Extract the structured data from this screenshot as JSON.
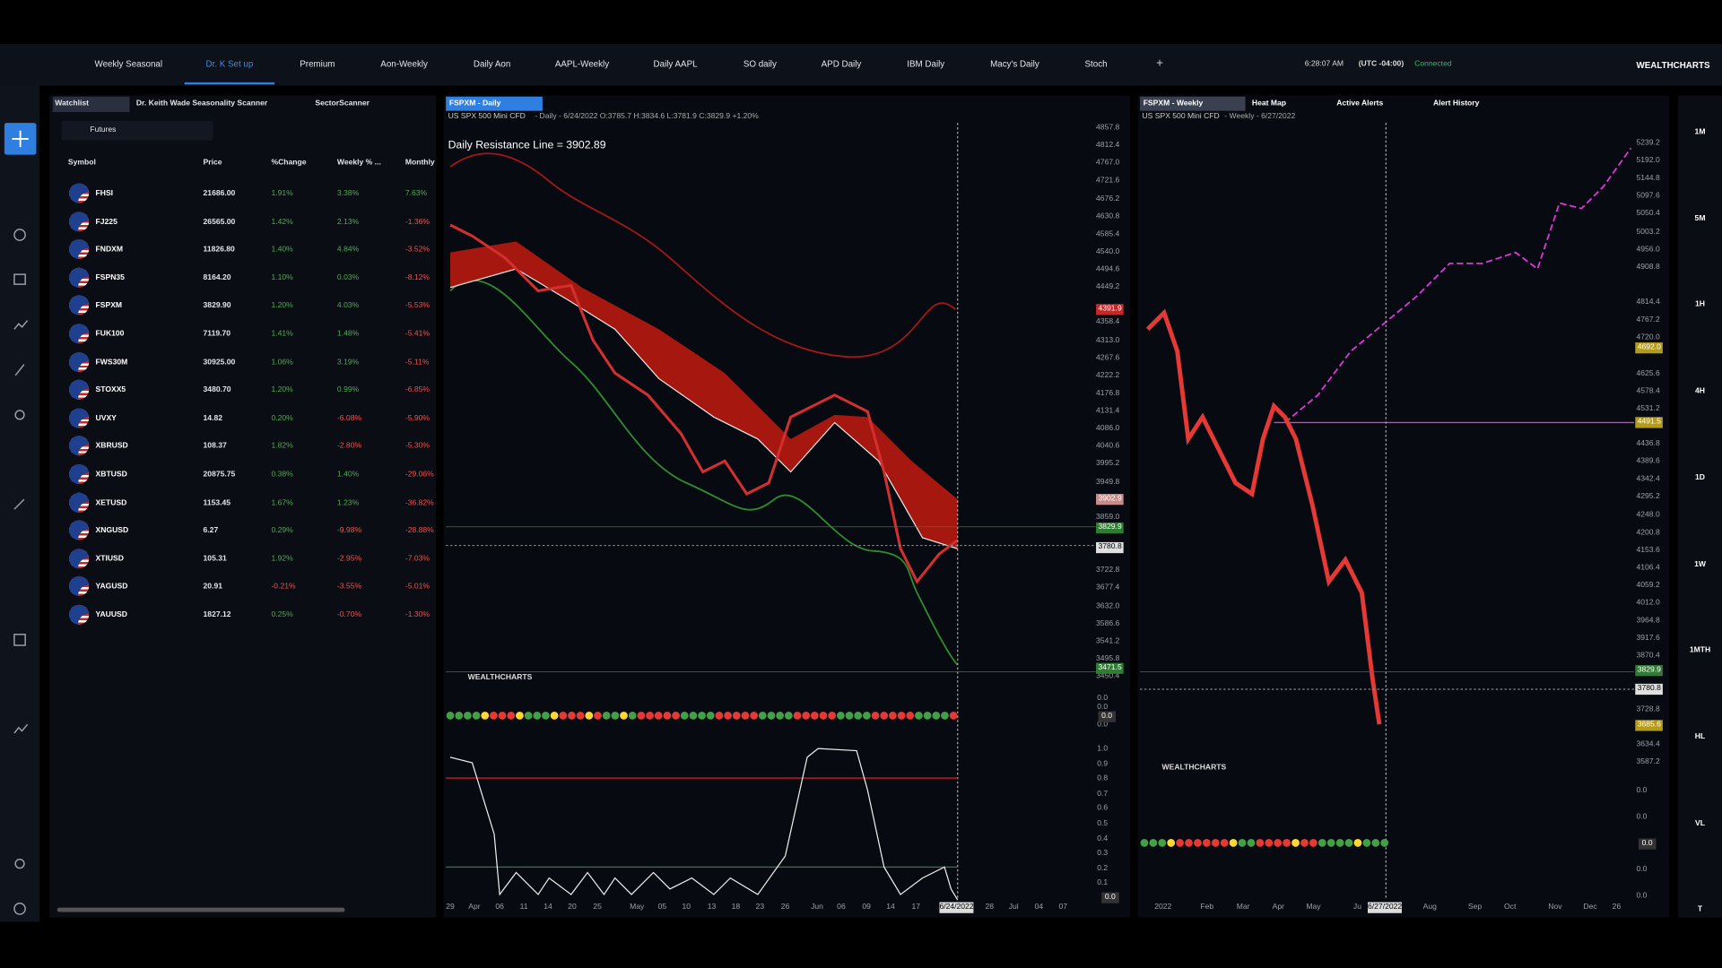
{
  "nav": {
    "tabs": [
      "Weekly Seasonal",
      "Dr. K Set up",
      "Premium",
      "Aon-Weekly",
      "Daily Aon",
      "AAPL-Weekly",
      "Daily AAPL",
      "SO daily",
      "APD Daily",
      "IBM Daily",
      "Macy's Daily",
      "Stoch"
    ],
    "add": "+",
    "time": "6:28:07 AM",
    "timezone": "(UTC -04:00)",
    "status": "Connected",
    "brand": "WEALTHCHARTS"
  },
  "watchlist": {
    "tabs": [
      "Watchlist",
      "Dr. Keith Wade Seasonality Scanner",
      "SectorScanner"
    ],
    "filter": "Futures",
    "columns": [
      "Symbol",
      "Price",
      "%Change",
      "Weekly % ...",
      "Monthly"
    ],
    "rows": [
      [
        "FHSI",
        "21686.00",
        "1.91%",
        "3.38%",
        "7.63%"
      ],
      [
        "FJ225",
        "26565.00",
        "1.42%",
        "2.13%",
        "-1.36%"
      ],
      [
        "FNDXM",
        "11826.80",
        "1.40%",
        "4.84%",
        "-3.52%"
      ],
      [
        "FSPN35",
        "8164.20",
        "1.10%",
        "0.03%",
        "-8.12%"
      ],
      [
        "FSPXM",
        "3829.90",
        "1.20%",
        "4.03%",
        "-5.53%"
      ],
      [
        "FUK100",
        "7119.70",
        "1.41%",
        "1.48%",
        "-5.41%"
      ],
      [
        "FWS30M",
        "30925.00",
        "1.06%",
        "3.19%",
        "-5.11%"
      ],
      [
        "STOXX5",
        "3480.70",
        "1.20%",
        "0.99%",
        "-6.85%"
      ],
      [
        "UVXY",
        "14.82",
        "0.20%",
        "-6.08%",
        "-5.90%"
      ],
      [
        "XBRUSD",
        "108.37",
        "1.82%",
        "-2.80%",
        "-5.30%"
      ],
      [
        "XBTUSD",
        "20875.75",
        "0.38%",
        "1.40%",
        "-29.06%"
      ],
      [
        "XETUSD",
        "1153.45",
        "1.67%",
        "1.23%",
        "-36.82%"
      ],
      [
        "XNGUSD",
        "6.27",
        "0.29%",
        "-9.98%",
        "-28.88%"
      ],
      [
        "XTIUSD",
        "105.31",
        "1.92%",
        "-2.95%",
        "-7.03%"
      ],
      [
        "YAGUSD",
        "20.91",
        "-0.21%",
        "-3.55%",
        "-5.01%"
      ],
      [
        "YAUUSD",
        "1827.12",
        "0.25%",
        "-0.70%",
        "-1.30%"
      ]
    ]
  },
  "daily_chart": {
    "tab": "FSPXM - Daily",
    "symbol": "US SPX 500 Mini CFD",
    "info": "- Daily - 6/24/2022 O:3785.7 H:3834.6 L:3781.9 C:3829.9 +1.20%",
    "annotation": "Daily Resistance Line = 3902.89",
    "brand": "WEALTHCHARTS",
    "yaxis": [
      "4857.8",
      "4812.4",
      "4767.0",
      "4721.6",
      "4676.2",
      "4630.8",
      "4585.4",
      "4540.0",
      "4494.6",
      "4449.2",
      "4358.4",
      "4313.0",
      "4267.6",
      "4222.2",
      "4176.8",
      "4131.4",
      "4086.0",
      "4040.6",
      "3995.2",
      "3949.8",
      "3859.0",
      "3722.8",
      "3677.4",
      "3632.0",
      "3586.6",
      "3541.2",
      "3495.8",
      "3450.4"
    ],
    "tags": [
      [
        "4391.9",
        "#c62828"
      ],
      [
        "3902.9",
        "#c98a8a"
      ],
      [
        "3829.9",
        "#2e7d32"
      ],
      [
        "3780.8",
        "#e0e0e0"
      ],
      [
        "3471.5",
        "#2e7d32"
      ]
    ],
    "ind1_axis": [
      "0.0",
      "0.0",
      "0.0"
    ],
    "ind1_tag": "0.0",
    "ind2_axis": [
      "1.0",
      "0.9",
      "0.8",
      "0.7",
      "0.6",
      "0.5",
      "0.4",
      "0.3",
      "0.2",
      "0.1"
    ],
    "ind2_tag": "0.0",
    "xaxis": [
      "29",
      "Apr",
      "06",
      "11",
      "14",
      "20",
      "25",
      "May",
      "05",
      "10",
      "13",
      "18",
      "23",
      "26",
      "Jun",
      "06",
      "09",
      "14",
      "17",
      "6/24/2022",
      "28",
      "Jul",
      "04",
      "07"
    ]
  },
  "weekly_chart": {
    "tabs": [
      "FSPXM - Weekly",
      "Heat Map",
      "Active Alerts",
      "Alert History"
    ],
    "symbol": "US SPX 500 Mini CFD",
    "info": "- Weekly - 6/27/2022",
    "brand": "WEALTHCHARTS",
    "yaxis": [
      "5239.2",
      "5192.0",
      "5144.8",
      "5097.6",
      "5050.4",
      "5003.2",
      "4956.0",
      "4908.8",
      "4814.4",
      "4767.2",
      "4720.0",
      "4625.6",
      "4578.4",
      "4531.2",
      "4436.8",
      "4389.6",
      "4342.4",
      "4295.2",
      "4248.0",
      "4200.8",
      "4153.6",
      "4106.4",
      "4059.2",
      "4012.0",
      "3964.8",
      "3917.6",
      "3870.4",
      "3728.8",
      "3634.4",
      "3587.2"
    ],
    "tags": [
      [
        "4692.0",
        "#b59b1a"
      ],
      [
        "4491.5",
        "#b59b1a"
      ],
      [
        "3829.9",
        "#2e7d32"
      ],
      [
        "3780.8",
        "#e0e0e0"
      ],
      [
        "3685.6",
        "#b59b1a"
      ]
    ],
    "ind_axis": [
      "0.0",
      "0.0",
      "0.0",
      "0.0"
    ],
    "ind_tag": "0.0",
    "xaxis": [
      "2022",
      "Feb",
      "Mar",
      "Apr",
      "May",
      "Ju",
      "6/27/2022",
      "Aug",
      "Sep",
      "Oct",
      "Nov",
      "Dec",
      "26"
    ]
  },
  "timeframes": [
    "1M",
    "5M",
    "1H",
    "4H",
    "1D",
    "1W",
    "1MTH",
    "HL",
    "VL",
    "T"
  ]
}
